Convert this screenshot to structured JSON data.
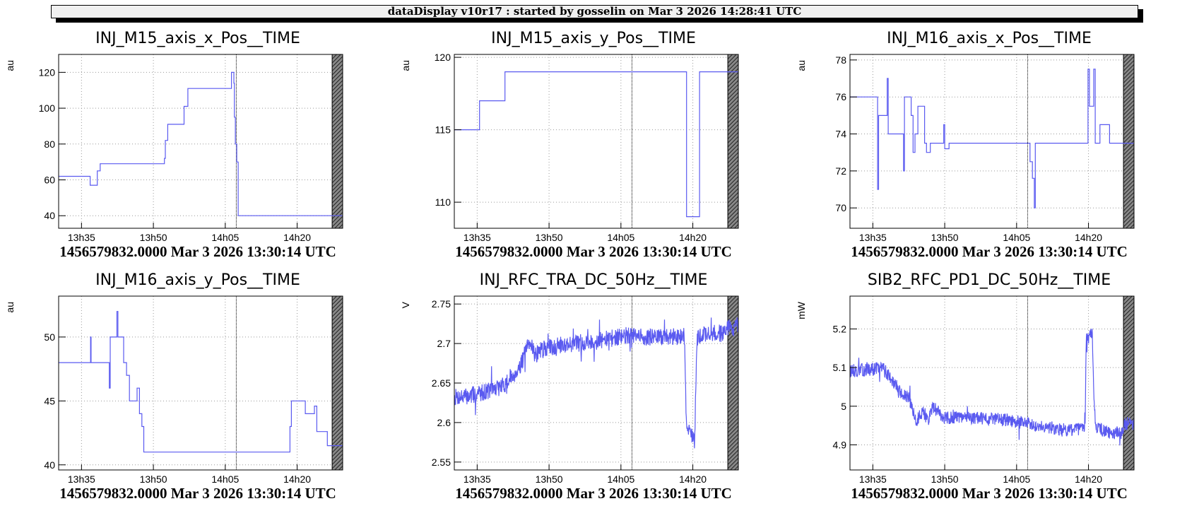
{
  "header": {
    "text": "dataDisplay v10r17 : started by gosselin on Mar  3 2026 14:28:41 UTC"
  },
  "x_ticks": [
    {
      "t": 35,
      "label": "13h35"
    },
    {
      "t": 50,
      "label": "13h50"
    },
    {
      "t": 65,
      "label": "14h05"
    },
    {
      "t": 80,
      "label": "14h20"
    }
  ],
  "chart_data": [
    {
      "type": "line",
      "title": "INJ_M15_axis_x_Pos__TIME",
      "ylabel": "au",
      "xlim": [
        30.23,
        89.5
      ],
      "ylim": [
        33,
        130
      ],
      "yticks": [
        40,
        60,
        80,
        100,
        120
      ],
      "ydec": 0,
      "marker_t": 67.3,
      "hatch_from": 87.3,
      "footer": "1456579832.0000 Mar 3 2026 13:30:14 UTC",
      "points": [
        [
          30.23,
          62
        ],
        [
          36.8,
          62
        ],
        [
          36.8,
          57
        ],
        [
          38.3,
          57
        ],
        [
          38.3,
          65
        ],
        [
          38.9,
          65
        ],
        [
          38.9,
          69
        ],
        [
          52.3,
          69
        ],
        [
          52.3,
          72
        ],
        [
          52.5,
          72
        ],
        [
          52.5,
          82
        ],
        [
          53.0,
          82
        ],
        [
          53.0,
          91
        ],
        [
          56.4,
          91
        ],
        [
          56.4,
          101
        ],
        [
          57.2,
          101
        ],
        [
          57.2,
          111
        ],
        [
          66.3,
          111
        ],
        [
          66.3,
          120
        ],
        [
          66.8,
          120
        ],
        [
          66.8,
          114
        ],
        [
          66.9,
          114
        ],
        [
          66.9,
          95
        ],
        [
          67.1,
          95
        ],
        [
          67.1,
          80
        ],
        [
          67.4,
          80
        ],
        [
          67.4,
          70
        ],
        [
          67.7,
          70
        ],
        [
          67.7,
          40
        ],
        [
          89.5,
          40
        ]
      ]
    },
    {
      "type": "line",
      "title": "INJ_M15_axis_y_Pos__TIME",
      "ylabel": "au",
      "xlim": [
        30.23,
        89.5
      ],
      "ylim": [
        108.2,
        120.2
      ],
      "yticks": [
        110,
        115,
        120
      ],
      "ydec": 0,
      "marker_t": 67.3,
      "hatch_from": 87.3,
      "footer": "1456579832.0000 Mar 3 2026 13:30:14 UTC",
      "points": [
        [
          30.23,
          115
        ],
        [
          35.5,
          115
        ],
        [
          35.5,
          117
        ],
        [
          40.8,
          117
        ],
        [
          40.8,
          119
        ],
        [
          78.7,
          119
        ],
        [
          78.7,
          109
        ],
        [
          81.4,
          109
        ],
        [
          81.4,
          119
        ],
        [
          89.5,
          119
        ]
      ]
    },
    {
      "type": "line",
      "title": "INJ_M16_axis_x_Pos__TIME",
      "ylabel": "au",
      "xlim": [
        30.23,
        89.5
      ],
      "ylim": [
        68.9,
        78.3
      ],
      "yticks": [
        70,
        72,
        74,
        76,
        78
      ],
      "ydec": 0,
      "marker_t": 67.3,
      "hatch_from": 87.3,
      "footer": "1456579832.0000 Mar 3 2026 13:30:14 UTC",
      "points": [
        [
          30.23,
          76
        ],
        [
          36.0,
          76
        ],
        [
          36.0,
          71
        ],
        [
          36.2,
          71
        ],
        [
          36.2,
          75
        ],
        [
          38.0,
          75
        ],
        [
          38.0,
          77
        ],
        [
          38.2,
          77
        ],
        [
          38.2,
          74
        ],
        [
          41.4,
          74
        ],
        [
          41.4,
          72
        ],
        [
          41.6,
          72
        ],
        [
          41.6,
          76
        ],
        [
          43.0,
          76
        ],
        [
          43.0,
          75
        ],
        [
          43.4,
          75
        ],
        [
          43.4,
          73
        ],
        [
          43.8,
          73
        ],
        [
          43.8,
          74
        ],
        [
          44.4,
          74
        ],
        [
          44.4,
          75.5
        ],
        [
          45.8,
          75.5
        ],
        [
          45.8,
          73.5
        ],
        [
          46.2,
          73.5
        ],
        [
          46.2,
          73
        ],
        [
          47.0,
          73
        ],
        [
          47.0,
          73.5
        ],
        [
          49.8,
          73.5
        ],
        [
          49.8,
          74.5
        ],
        [
          50.0,
          74.5
        ],
        [
          50.0,
          73.2
        ],
        [
          50.9,
          73.2
        ],
        [
          50.9,
          73.5
        ],
        [
          67.8,
          73.5
        ],
        [
          67.8,
          72.5
        ],
        [
          68.3,
          72.5
        ],
        [
          68.3,
          71.6
        ],
        [
          68.7,
          71.6
        ],
        [
          68.7,
          70
        ],
        [
          68.9,
          70
        ],
        [
          68.9,
          73.5
        ],
        [
          79.9,
          73.5
        ],
        [
          79.9,
          77.5
        ],
        [
          80.2,
          77.5
        ],
        [
          80.2,
          75.5
        ],
        [
          81.1,
          75.5
        ],
        [
          81.1,
          77.5
        ],
        [
          81.4,
          77.5
        ],
        [
          81.4,
          73.5
        ],
        [
          82.4,
          73.5
        ],
        [
          82.4,
          74.5
        ],
        [
          84.4,
          74.5
        ],
        [
          84.4,
          73.5
        ],
        [
          89.5,
          73.5
        ]
      ]
    },
    {
      "type": "line",
      "title": "INJ_M16_axis_y_Pos__TIME",
      "ylabel": "au",
      "xlim": [
        30.23,
        89.5
      ],
      "ylim": [
        39.6,
        53.2
      ],
      "yticks": [
        40,
        45,
        50
      ],
      "ydec": 0,
      "marker_t": 67.3,
      "hatch_from": 87.3,
      "footer": "1456579832.0000 Mar 3 2026 13:30:14 UTC",
      "points": [
        [
          30.23,
          48
        ],
        [
          36.9,
          48
        ],
        [
          36.9,
          50
        ],
        [
          37.0,
          50
        ],
        [
          37.0,
          48
        ],
        [
          40.8,
          48
        ],
        [
          40.8,
          46
        ],
        [
          41.0,
          46
        ],
        [
          41.0,
          50
        ],
        [
          42.4,
          50
        ],
        [
          42.4,
          52
        ],
        [
          42.6,
          52
        ],
        [
          42.6,
          50
        ],
        [
          43.8,
          50
        ],
        [
          43.8,
          48
        ],
        [
          44.4,
          48
        ],
        [
          44.4,
          47
        ],
        [
          45.0,
          47
        ],
        [
          45.0,
          45
        ],
        [
          46.6,
          45
        ],
        [
          46.6,
          46
        ],
        [
          47.1,
          46
        ],
        [
          47.1,
          44
        ],
        [
          47.6,
          44
        ],
        [
          47.6,
          43
        ],
        [
          48.0,
          43
        ],
        [
          48.0,
          41
        ],
        [
          78.5,
          41
        ],
        [
          78.5,
          43
        ],
        [
          78.8,
          43
        ],
        [
          78.8,
          45
        ],
        [
          81.7,
          45
        ],
        [
          81.7,
          44
        ],
        [
          83.6,
          44
        ],
        [
          83.6,
          44.6
        ],
        [
          84.1,
          44.6
        ],
        [
          84.1,
          42.6
        ],
        [
          86.3,
          42.6
        ],
        [
          86.3,
          41.5
        ],
        [
          89.5,
          41.5
        ]
      ]
    },
    {
      "type": "line",
      "title": "INJ_RFC_TRA_DC_50Hz__TIME",
      "ylabel": "V",
      "xlim": [
        30.23,
        89.5
      ],
      "ylim": [
        2.54,
        2.76
      ],
      "yticks": [
        2.55,
        2.6,
        2.65,
        2.7,
        2.75
      ],
      "ydec": "auto",
      "marker_t": 67.3,
      "hatch_from": 87.3,
      "footer": "1456579832.0000 Mar 3 2026 13:30:14 UTC",
      "noise": 0.011,
      "spike": 0.02,
      "seed": 7,
      "samples": 900,
      "profile": [
        [
          30.23,
          2.632
        ],
        [
          33,
          2.633
        ],
        [
          37,
          2.64
        ],
        [
          40,
          2.645
        ],
        [
          42,
          2.655
        ],
        [
          44,
          2.672
        ],
        [
          45.5,
          2.695
        ],
        [
          46.5,
          2.7
        ],
        [
          47,
          2.685
        ],
        [
          48.5,
          2.692
        ],
        [
          52,
          2.698
        ],
        [
          60,
          2.703
        ],
        [
          66,
          2.71
        ],
        [
          70,
          2.708
        ],
        [
          75,
          2.708
        ],
        [
          78.3,
          2.71
        ],
        [
          78.6,
          2.6
        ],
        [
          80.4,
          2.575
        ],
        [
          80.6,
          2.64
        ],
        [
          80.9,
          2.705
        ],
        [
          82,
          2.712
        ],
        [
          86,
          2.713
        ],
        [
          87.3,
          2.72
        ],
        [
          89.5,
          2.722
        ]
      ]
    },
    {
      "type": "line",
      "title": "SIB2_RFC_PD1_DC_50Hz__TIME",
      "ylabel": "mW",
      "xlim": [
        30.23,
        89.5
      ],
      "ylim": [
        4.835,
        5.285
      ],
      "yticks": [
        4.9,
        5,
        5.1,
        5.2
      ],
      "ydec": "auto",
      "marker_t": 67.3,
      "hatch_from": 87.3,
      "footer": "1456579832.0000 Mar 3 2026 13:30:14 UTC",
      "noise": 0.017,
      "spike": 0.03,
      "seed": 13,
      "samples": 900,
      "profile": [
        [
          30.23,
          5.09
        ],
        [
          34,
          5.095
        ],
        [
          37,
          5.1
        ],
        [
          39,
          5.07
        ],
        [
          41,
          5.03
        ],
        [
          42.5,
          5.02
        ],
        [
          44,
          4.96
        ],
        [
          45.5,
          4.99
        ],
        [
          46.5,
          4.96
        ],
        [
          47.5,
          5.0
        ],
        [
          50,
          4.97
        ],
        [
          55,
          4.97
        ],
        [
          62,
          4.965
        ],
        [
          68,
          4.955
        ],
        [
          74,
          4.94
        ],
        [
          79.3,
          4.94
        ],
        [
          79.5,
          5.17
        ],
        [
          80.8,
          5.19
        ],
        [
          81.2,
          5.0
        ],
        [
          81.5,
          4.945
        ],
        [
          84,
          4.932
        ],
        [
          87.3,
          4.93
        ],
        [
          87.5,
          4.955
        ],
        [
          89.5,
          4.955
        ]
      ]
    }
  ]
}
